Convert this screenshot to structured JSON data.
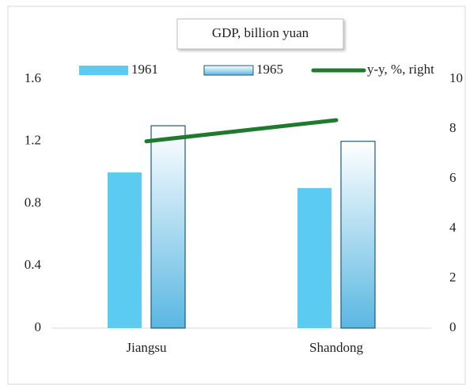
{
  "chart_data": {
    "type": "bar",
    "title": "GDP, billion  yuan",
    "categories": [
      "Jiangsu",
      "Shandong"
    ],
    "series": [
      {
        "name": "1961",
        "type": "bar",
        "color": "#5ccbf2",
        "values": [
          1.0,
          0.9
        ]
      },
      {
        "name": "1965",
        "type": "bar",
        "color": "#5ab7e2",
        "values": [
          1.3,
          1.2
        ],
        "gradient": true
      },
      {
        "name": "y-y, %, right",
        "type": "line",
        "axis": "y2",
        "color": "#1f7a30",
        "values": [
          7.5,
          8.35
        ]
      }
    ],
    "ylim": [
      0,
      1.6
    ],
    "yticks": [
      0,
      0.4,
      0.8,
      1.2,
      1.6
    ],
    "y2lim": [
      0,
      10
    ],
    "y2ticks": [
      0,
      2,
      4,
      6,
      8,
      10
    ],
    "grid": false,
    "legend": "top"
  }
}
